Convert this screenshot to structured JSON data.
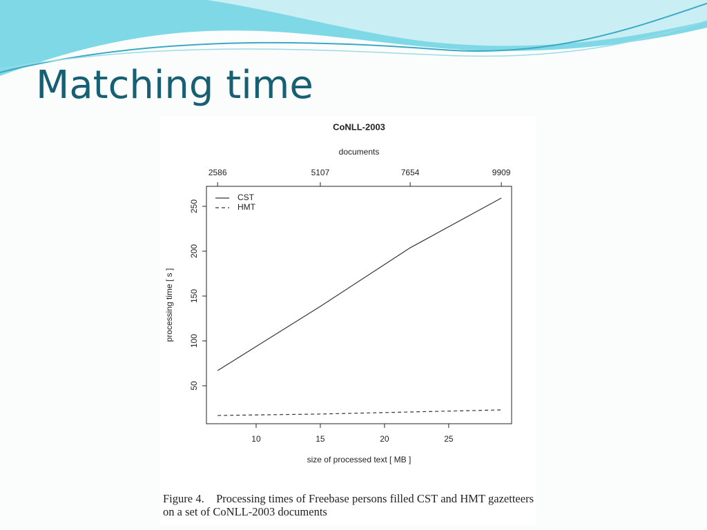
{
  "slide_title": "Matching time",
  "caption": "Figure 4.    Processing times of Freebase persons filled CST and HMT gazetteers on a set of CoNLL-2003 documents",
  "chart_data": {
    "type": "line",
    "title": "CoNLL-2003",
    "x_label": "size of processed text [ MB ]",
    "y_label": "processing time [ s ]",
    "x2_label": "documents",
    "x": [
      7,
      15,
      22,
      29.1
    ],
    "documents": [
      2586,
      5107,
      7654,
      9909
    ],
    "xlim": [
      6.13,
      29.9
    ],
    "xticks": [
      10,
      15,
      20,
      25
    ],
    "ylim": [
      7.7,
      272.3
    ],
    "yticks": [
      50,
      100,
      150,
      200,
      250
    ],
    "legend": "top-left",
    "grid": false,
    "series": [
      {
        "name": "CST",
        "color": "#333333",
        "linestyle": "solid",
        "values": [
          66.9,
          138.5,
          203.8,
          259.2
        ]
      },
      {
        "name": "HMT",
        "color": "#333333",
        "linestyle": "dashed",
        "values": [
          16.9,
          18.5,
          20.8,
          23.1
        ]
      }
    ]
  }
}
